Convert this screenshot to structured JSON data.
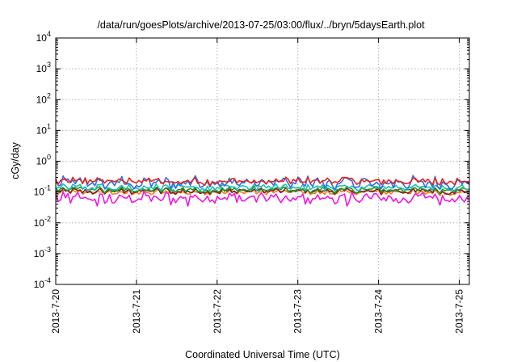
{
  "chart_data": {
    "type": "line",
    "title": "/data/run/goesPlots/archive/2013-07-25/03:00/flux/../bryn/5daysEarth.plot",
    "xlabel": "Coordinated Universal Time (UTC)",
    "ylabel": "cGy/day",
    "yscale": "log",
    "ylim": [
      0.0001,
      10000
    ],
    "y_ticks": [
      {
        "base": "10",
        "exp": "-4"
      },
      {
        "base": "10",
        "exp": "-3"
      },
      {
        "base": "10",
        "exp": "-2"
      },
      {
        "base": "10",
        "exp": "-1"
      },
      {
        "base": "10",
        "exp": "0"
      },
      {
        "base": "10",
        "exp": "1"
      },
      {
        "base": "10",
        "exp": "2"
      },
      {
        "base": "10",
        "exp": "3"
      },
      {
        "base": "10",
        "exp": "4"
      }
    ],
    "xlim": [
      "2013-07-20T00:00",
      "2013-07-25T03:00"
    ],
    "x_ticks": [
      "2013-7-20",
      "2013-7-21",
      "2013-7-22",
      "2013-7-23",
      "2013-7-24",
      "2013-7-25"
    ],
    "grid": true,
    "series": [
      {
        "color": "#e8231c",
        "approx_level": 0.22,
        "low": 0.16,
        "high": 0.32
      },
      {
        "color": "#2f6fe8",
        "approx_level": 0.18,
        "low": 0.11,
        "high": 0.36
      },
      {
        "color": "#1fbfb0",
        "approx_level": 0.13,
        "low": 0.1,
        "high": 0.2
      },
      {
        "color": "#1a9a2a",
        "approx_level": 0.12,
        "low": 0.09,
        "high": 0.16
      },
      {
        "color": "#7a2222",
        "approx_level": 0.1,
        "low": 0.08,
        "high": 0.14
      },
      {
        "color": "#f08020",
        "approx_level": 0.095,
        "low": 0.075,
        "high": 0.13
      },
      {
        "color": "#ee18e0",
        "approx_level": 0.08,
        "low": 0.035,
        "high": 0.11
      }
    ]
  }
}
